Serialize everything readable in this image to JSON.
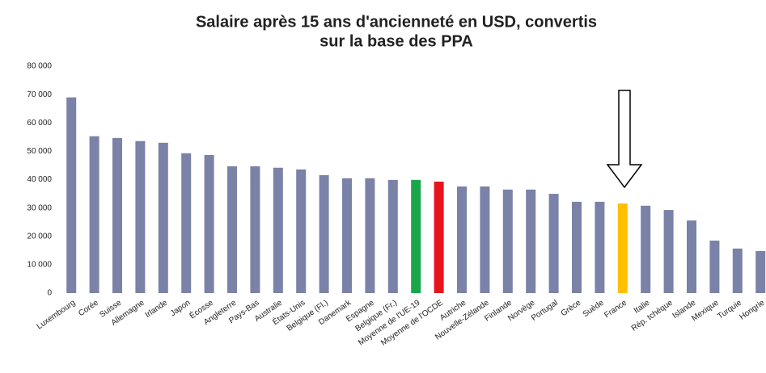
{
  "chart_data": {
    "type": "bar",
    "title": [
      "Salaire après 15 ans d'ancienneté en USD, convertis",
      "sur la base des PPA"
    ],
    "categories": [
      "Luxembourg",
      "Corée",
      "Suisse",
      "Allemagne",
      "Irlande",
      "Japon",
      "Écosse",
      "Angleterre",
      "Pays-Bas",
      "Australie",
      "États-Unis",
      "Belgique (Fl.)",
      "Danemark",
      "Espagne",
      "Belgique (Fr.)",
      "Moyenne de l'UE-19",
      "Moyenne de l'OCDE",
      "Autriche",
      "Nouvelle-Zélande",
      "Finlande",
      "Norvège",
      "Portugal",
      "Grèce",
      "Suède",
      "France",
      "Italie",
      "Rép. tchèque",
      "Islande",
      "Mexique",
      "Turquie",
      "Hongrie"
    ],
    "values": [
      69000,
      55300,
      54700,
      53600,
      53000,
      49300,
      48700,
      44700,
      44700,
      44200,
      43600,
      41600,
      40500,
      40500,
      39900,
      39900,
      39300,
      37600,
      37600,
      36500,
      36500,
      35000,
      32200,
      32200,
      31600,
      30800,
      29300,
      25600,
      18500,
      15700,
      14800
    ],
    "colors": [
      "#7b82a8",
      "#7b82a8",
      "#7b82a8",
      "#7b82a8",
      "#7b82a8",
      "#7b82a8",
      "#7b82a8",
      "#7b82a8",
      "#7b82a8",
      "#7b82a8",
      "#7b82a8",
      "#7b82a8",
      "#7b82a8",
      "#7b82a8",
      "#7b82a8",
      "#1aa64a",
      "#e8141b",
      "#7b82a8",
      "#7b82a8",
      "#7b82a8",
      "#7b82a8",
      "#7b82a8",
      "#7b82a8",
      "#7b82a8",
      "#ffc000",
      "#7b82a8",
      "#7b82a8",
      "#7b82a8",
      "#7b82a8",
      "#7b82a8",
      "#7b82a8"
    ],
    "ylim": [
      0,
      80000
    ],
    "yticks": [
      0,
      {
        "value": 10000,
        "label": "10 000"
      },
      {
        "value": 20000,
        "label": "20 000"
      },
      {
        "value": 30000,
        "label": "30 000"
      },
      {
        "value": 40000,
        "label": "40 000"
      },
      {
        "value": 50000,
        "label": "50 000"
      },
      {
        "value": 60000,
        "label": "60 000"
      },
      {
        "value": 70000,
        "label": "70 000"
      },
      {
        "value": 80000,
        "label": "80 000"
      }
    ],
    "grid": false
  }
}
